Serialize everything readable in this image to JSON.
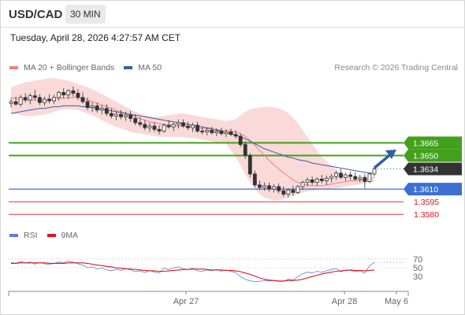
{
  "header": {
    "symbol": "USD/CAD",
    "interval": "30 MIN",
    "datetime": "Tuesday, April 28, 2026 4:27:57 AM CET"
  },
  "legend": {
    "ma20_label": "MA 20 + Bollinger Bands",
    "ma50_label": "MA 50",
    "ma20_color": "#f08080",
    "ma50_color": "#3b5da8",
    "copyright": "Research © 2026 Trading Central"
  },
  "rsi_legend": {
    "rsi_label": "RSI",
    "ma_label": "9MA",
    "rsi_color": "#5a7fd6",
    "ma_color": "#e0141e"
  },
  "colors": {
    "resistance": "#43a01c",
    "pivot": "#3b6fd4",
    "support": "#e0141e",
    "current": "#333333",
    "arrow": "#2b5fa5"
  },
  "chart_data": [
    {
      "type": "candlestick",
      "ylim": [
        1.3568,
        1.3745
      ],
      "levels": [
        {
          "value": 1.3665,
          "label": "1.3665",
          "kind": "resistance"
        },
        {
          "value": 1.365,
          "label": "1.3650",
          "kind": "resistance"
        },
        {
          "value": 1.3634,
          "label": "1.3634",
          "kind": "current"
        },
        {
          "value": 1.361,
          "label": "1.3610",
          "kind": "pivot"
        },
        {
          "value": 1.3595,
          "label": "1.3595",
          "kind": "support"
        },
        {
          "value": 1.358,
          "label": "1.3580",
          "kind": "support"
        }
      ],
      "x_ticks": [
        "Apr 27",
        "Apr 28",
        "May 6"
      ],
      "ohlc": [
        [
          1.3712,
          1.3718,
          1.3707,
          1.3714
        ],
        [
          1.3714,
          1.372,
          1.3709,
          1.3711
        ],
        [
          1.3711,
          1.3722,
          1.3708,
          1.3719
        ],
        [
          1.3719,
          1.3724,
          1.3713,
          1.3716
        ],
        [
          1.3716,
          1.3724,
          1.3711,
          1.3721
        ],
        [
          1.3721,
          1.3728,
          1.3716,
          1.3719
        ],
        [
          1.3719,
          1.3723,
          1.371,
          1.3713
        ],
        [
          1.3713,
          1.372,
          1.3709,
          1.3717
        ],
        [
          1.3717,
          1.3723,
          1.3712,
          1.3715
        ],
        [
          1.3715,
          1.3722,
          1.3711,
          1.3719
        ],
        [
          1.3719,
          1.3727,
          1.3715,
          1.3725
        ],
        [
          1.3725,
          1.373,
          1.3718,
          1.3722
        ],
        [
          1.3722,
          1.3729,
          1.3717,
          1.3727
        ],
        [
          1.3727,
          1.3732,
          1.372,
          1.3724
        ],
        [
          1.3724,
          1.3729,
          1.3716,
          1.3719
        ],
        [
          1.3719,
          1.3725,
          1.3712,
          1.3714
        ],
        [
          1.3714,
          1.3719,
          1.3704,
          1.3707
        ],
        [
          1.3707,
          1.3713,
          1.3702,
          1.3709
        ],
        [
          1.3709,
          1.3713,
          1.3701,
          1.3704
        ],
        [
          1.3704,
          1.371,
          1.3699,
          1.3706
        ],
        [
          1.3706,
          1.3711,
          1.3697,
          1.37
        ],
        [
          1.37,
          1.3706,
          1.3694,
          1.3697
        ],
        [
          1.3697,
          1.3703,
          1.3692,
          1.3699
        ],
        [
          1.3699,
          1.3704,
          1.3693,
          1.3696
        ],
        [
          1.3696,
          1.3702,
          1.3691,
          1.3698
        ],
        [
          1.3698,
          1.3703,
          1.369,
          1.3694
        ],
        [
          1.3694,
          1.3699,
          1.3686,
          1.3689
        ],
        [
          1.3689,
          1.3695,
          1.3684,
          1.3687
        ],
        [
          1.3687,
          1.3692,
          1.368,
          1.3683
        ],
        [
          1.3683,
          1.3689,
          1.3678,
          1.3685
        ],
        [
          1.3685,
          1.369,
          1.3678,
          1.3681
        ],
        [
          1.3681,
          1.3686,
          1.3675,
          1.3679
        ],
        [
          1.3679,
          1.3688,
          1.3677,
          1.3686
        ],
        [
          1.3686,
          1.3692,
          1.3682,
          1.3684
        ],
        [
          1.3684,
          1.3689,
          1.3679,
          1.3687
        ],
        [
          1.3687,
          1.3693,
          1.3682,
          1.3689
        ],
        [
          1.3689,
          1.3693,
          1.3683,
          1.3685
        ],
        [
          1.3685,
          1.369,
          1.368,
          1.3683
        ],
        [
          1.3683,
          1.3689,
          1.3678,
          1.3686
        ],
        [
          1.3686,
          1.369,
          1.3677,
          1.3679
        ],
        [
          1.3679,
          1.3684,
          1.3675,
          1.3678
        ],
        [
          1.3678,
          1.3683,
          1.3674,
          1.368
        ],
        [
          1.368,
          1.3684,
          1.3675,
          1.3677
        ],
        [
          1.3677,
          1.3682,
          1.3673,
          1.3679
        ],
        [
          1.3679,
          1.3683,
          1.3674,
          1.3676
        ],
        [
          1.3676,
          1.3681,
          1.3672,
          1.3678
        ],
        [
          1.3678,
          1.3682,
          1.3673,
          1.3675
        ],
        [
          1.3675,
          1.368,
          1.367,
          1.3673
        ],
        [
          1.3673,
          1.3676,
          1.366,
          1.3663
        ],
        [
          1.3663,
          1.3667,
          1.3646,
          1.365
        ],
        [
          1.365,
          1.3653,
          1.3624,
          1.3628
        ],
        [
          1.3628,
          1.3632,
          1.3612,
          1.3615
        ],
        [
          1.3615,
          1.362,
          1.3609,
          1.3612
        ],
        [
          1.3612,
          1.3618,
          1.3608,
          1.3614
        ],
        [
          1.3614,
          1.3618,
          1.3607,
          1.361
        ],
        [
          1.361,
          1.3616,
          1.3606,
          1.3613
        ],
        [
          1.3613,
          1.3617,
          1.3605,
          1.3608
        ],
        [
          1.3608,
          1.3613,
          1.3601,
          1.3604
        ],
        [
          1.3604,
          1.3611,
          1.36,
          1.3609
        ],
        [
          1.3609,
          1.3614,
          1.3602,
          1.3606
        ],
        [
          1.3606,
          1.3615,
          1.3604,
          1.3613
        ],
        [
          1.3613,
          1.362,
          1.3609,
          1.3618
        ],
        [
          1.3618,
          1.3624,
          1.3613,
          1.3621
        ],
        [
          1.3621,
          1.3625,
          1.3615,
          1.3618
        ],
        [
          1.3618,
          1.3624,
          1.3614,
          1.3622
        ],
        [
          1.3622,
          1.3627,
          1.3617,
          1.362
        ],
        [
          1.362,
          1.3626,
          1.3615,
          1.3623
        ],
        [
          1.3623,
          1.3628,
          1.3618,
          1.3625
        ],
        [
          1.3625,
          1.3632,
          1.3621,
          1.3629
        ],
        [
          1.3629,
          1.3634,
          1.3622,
          1.3624
        ],
        [
          1.3624,
          1.363,
          1.362,
          1.3627
        ],
        [
          1.3627,
          1.3631,
          1.3621,
          1.3625
        ],
        [
          1.3625,
          1.363,
          1.362,
          1.3622
        ],
        [
          1.3622,
          1.3627,
          1.3618,
          1.3624
        ],
        [
          1.3624,
          1.3628,
          1.3611,
          1.3619
        ],
        [
          1.3619,
          1.363,
          1.3617,
          1.3628
        ],
        [
          1.3628,
          1.3636,
          1.3625,
          1.3634
        ]
      ],
      "ma20": [
        1.3719,
        1.3718,
        1.3717,
        1.3716,
        1.3716,
        1.3716,
        1.3715,
        1.3715,
        1.3716,
        1.3717,
        1.3718,
        1.3718,
        1.3719,
        1.3719,
        1.3719,
        1.3718,
        1.3716,
        1.3714,
        1.3712,
        1.371,
        1.3708,
        1.3706,
        1.3704,
        1.3702,
        1.37,
        1.3698,
        1.3696,
        1.3694,
        1.3692,
        1.369,
        1.3689,
        1.3688,
        1.3687,
        1.3686,
        1.3686,
        1.3685,
        1.3685,
        1.3684,
        1.3684,
        1.3683,
        1.3682,
        1.3682,
        1.3681,
        1.3681,
        1.368,
        1.368,
        1.3679,
        1.3678,
        1.3676,
        1.3673,
        1.3668,
        1.3662,
        1.3656,
        1.365,
        1.3644,
        1.3639,
        1.3634,
        1.3629,
        1.3625,
        1.3621,
        1.3618,
        1.3616,
        1.3615,
        1.3614,
        1.3614,
        1.3614,
        1.3615,
        1.3616,
        1.3617,
        1.3618,
        1.3619,
        1.362,
        1.362,
        1.3621,
        1.3621,
        1.3622,
        1.3624
      ],
      "ma50": [
        1.37,
        1.3701,
        1.3702,
        1.3703,
        1.3704,
        1.3705,
        1.3706,
        1.3706,
        1.3707,
        1.3708,
        1.3708,
        1.3709,
        1.3709,
        1.3709,
        1.3709,
        1.3708,
        1.3708,
        1.3707,
        1.3706,
        1.3705,
        1.3704,
        1.3703,
        1.3702,
        1.3701,
        1.37,
        1.3699,
        1.3698,
        1.3697,
        1.3696,
        1.3695,
        1.3694,
        1.3693,
        1.3692,
        1.3691,
        1.369,
        1.3689,
        1.3688,
        1.3687,
        1.3686,
        1.3685,
        1.3684,
        1.3683,
        1.3682,
        1.368,
        1.3679,
        1.3677,
        1.3676,
        1.3674,
        1.3672,
        1.367,
        1.3667,
        1.3664,
        1.3661,
        1.3658,
        1.3656,
        1.3654,
        1.3652,
        1.365,
        1.3648,
        1.3647,
        1.3645,
        1.3644,
        1.3643,
        1.3641,
        1.364,
        1.3639,
        1.3638,
        1.3637,
        1.3636,
        1.3635,
        1.3634,
        1.3633,
        1.3632,
        1.3631,
        1.363,
        1.3629,
        1.3629
      ],
      "bb_upper": [
        1.3731,
        1.3733,
        1.3735,
        1.3737,
        1.3738,
        1.3739,
        1.374,
        1.3741,
        1.3742,
        1.3742,
        1.3741,
        1.374,
        1.3739,
        1.3737,
        1.3735,
        1.3733,
        1.3731,
        1.3729,
        1.3726,
        1.3723,
        1.372,
        1.3717,
        1.3714,
        1.3711,
        1.3708,
        1.3705,
        1.3702,
        1.37,
        1.3698,
        1.3697,
        1.3696,
        1.3696,
        1.3697,
        1.3698,
        1.3699,
        1.37,
        1.37,
        1.3699,
        1.3698,
        1.3697,
        1.3696,
        1.3695,
        1.3694,
        1.3693,
        1.3692,
        1.3691,
        1.3692,
        1.3693,
        1.3698,
        1.3702,
        1.3705,
        1.3706,
        1.3707,
        1.3708,
        1.3708,
        1.3707,
        1.3706,
        1.3704,
        1.37,
        1.3695,
        1.3688,
        1.368,
        1.3672,
        1.3664,
        1.3656,
        1.3649,
        1.3643,
        1.3638,
        1.3633,
        1.3629,
        1.3626,
        1.3624,
        1.3622,
        1.3621,
        1.3621,
        1.3621,
        1.3622
      ],
      "bb_lower": [
        1.37,
        1.3699,
        1.3698,
        1.3697,
        1.3697,
        1.3697,
        1.3698,
        1.3699,
        1.37,
        1.3702,
        1.3704,
        1.3705,
        1.3705,
        1.3705,
        1.3704,
        1.3702,
        1.37,
        1.3698,
        1.3695,
        1.3692,
        1.3689,
        1.3686,
        1.3684,
        1.3682,
        1.368,
        1.3678,
        1.3677,
        1.3676,
        1.3675,
        1.3674,
        1.3673,
        1.3672,
        1.3672,
        1.3672,
        1.3672,
        1.3672,
        1.3672,
        1.3671,
        1.3671,
        1.367,
        1.3669,
        1.3668,
        1.3667,
        1.3666,
        1.3665,
        1.3664,
        1.3656,
        1.3648,
        1.3638,
        1.3628,
        1.3618,
        1.361,
        1.3604,
        1.36,
        1.3598,
        1.3597,
        1.3597,
        1.3598,
        1.36,
        1.3602,
        1.3604,
        1.3606,
        1.3607,
        1.3608,
        1.3609,
        1.361,
        1.361,
        1.3611,
        1.3611,
        1.3612,
        1.3613,
        1.3614,
        1.3615,
        1.3616,
        1.3617,
        1.3618,
        1.3619
      ]
    },
    {
      "type": "line",
      "ylim": [
        0,
        100
      ],
      "y_ticks": [
        70,
        50,
        30
      ],
      "x_ticks": [
        "Apr 27",
        "Apr 28",
        "May 6"
      ],
      "series": [
        {
          "name": "RSI",
          "values": [
            62,
            60,
            64,
            61,
            63,
            58,
            62,
            59,
            57,
            60,
            63,
            61,
            65,
            63,
            59,
            56,
            50,
            52,
            47,
            50,
            45,
            43,
            47,
            44,
            48,
            45,
            41,
            43,
            39,
            44,
            40,
            38,
            49,
            46,
            50,
            52,
            48,
            46,
            49,
            43,
            42,
            45,
            43,
            46,
            42,
            45,
            42,
            39,
            30,
            24,
            20,
            19,
            19,
            21,
            20,
            21,
            19,
            19,
            24,
            22,
            30,
            36,
            40,
            38,
            42,
            40,
            43,
            46,
            48,
            41,
            45,
            44,
            41,
            43,
            38,
            55,
            62
          ]
        },
        {
          "name": "9MA",
          "values": [
            60,
            60,
            61,
            61,
            61,
            61,
            61,
            61,
            60,
            60,
            60,
            60,
            61,
            61,
            61,
            61,
            60,
            58,
            56,
            55,
            53,
            52,
            50,
            49,
            48,
            47,
            46,
            45,
            44,
            43,
            43,
            42,
            42,
            43,
            44,
            45,
            46,
            46,
            47,
            47,
            47,
            46,
            45,
            45,
            45,
            44,
            44,
            43,
            41,
            38,
            35,
            31,
            27,
            24,
            22,
            21,
            20,
            20,
            21,
            21,
            22,
            24,
            27,
            30,
            33,
            36,
            38,
            40,
            42,
            43,
            44,
            45,
            44,
            44,
            43,
            44,
            45
          ]
        }
      ]
    }
  ]
}
